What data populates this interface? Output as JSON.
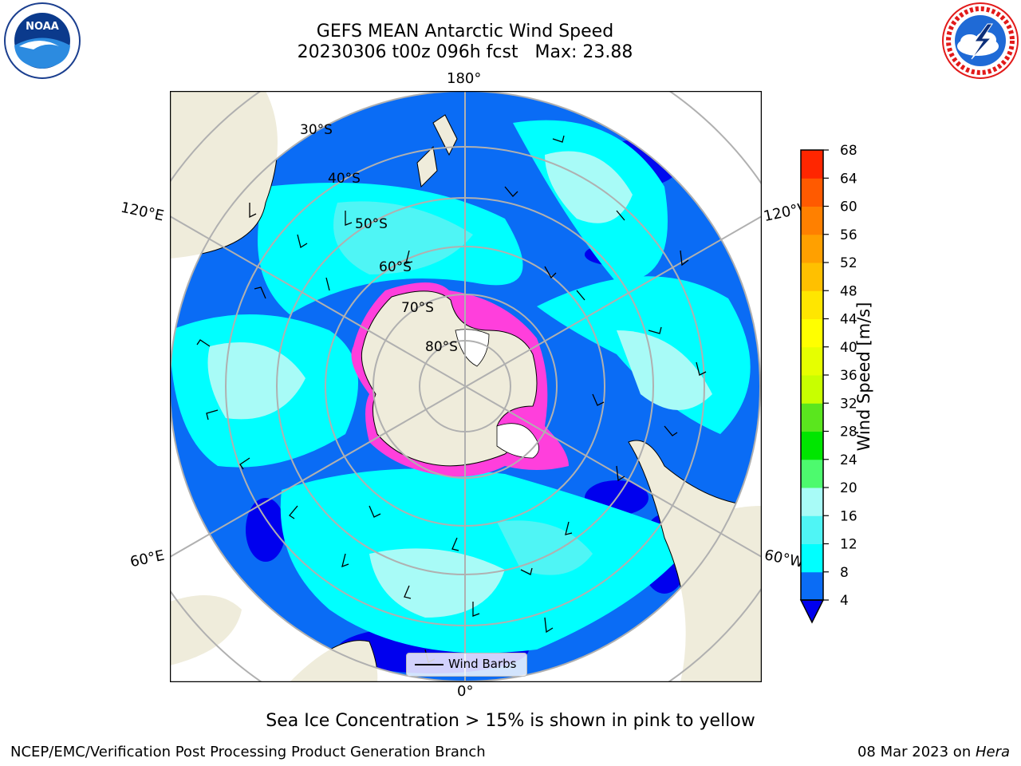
{
  "header": {
    "title_line1": "GEFS MEAN Antarctic Wind Speed",
    "title_line2": "20230306 t00z 096h fcst   Max: 23.88"
  },
  "logos": {
    "noaa": {
      "text": "NOAA",
      "ring_text": "NATIONAL OCEANIC AND ATMOSPHERIC ADMINISTRATION · U.S. DEPARTMENT OF COMMERCE",
      "icon": "noaa-seagull-logo"
    },
    "nws": {
      "ring_text": "NATIONAL WEATHER SERVICE",
      "icon": "nws-lightning-cloud-logo"
    }
  },
  "map": {
    "projection": "south-polar-stereographic",
    "lon_labels": {
      "top": "180°",
      "bottom": "0°",
      "left_upper": "120°E",
      "left_lower": "60°E",
      "right_upper": "120°W",
      "right_lower": "60°W"
    },
    "lat_labels": [
      "30°S",
      "40°S",
      "50°S",
      "60°S",
      "70°S",
      "80°S"
    ],
    "legend_label": "Wind Barbs",
    "colors": {
      "land": "#efecdb",
      "ice_sheet": "#ffffff",
      "sea_ice": "#ff3fdc",
      "grid": "#b0b0b0",
      "ws_4_8": "#0a6cf5",
      "ws_8_12": "#00ffff",
      "ws_12_16": "#4ff5f5",
      "ws_16_20": "#a8fbf7",
      "ws_below_4": "#0000ee"
    }
  },
  "colorbar": {
    "label": "Wind Speed [m/s]",
    "ticks": [
      "4",
      "8",
      "12",
      "16",
      "20",
      "24",
      "28",
      "32",
      "36",
      "40",
      "44",
      "48",
      "52",
      "56",
      "60",
      "64",
      "68"
    ],
    "colors": [
      "#0a6cf5",
      "#00ffff",
      "#4ff5f5",
      "#a8fbf7",
      "#4dfa6e",
      "#00e600",
      "#5ae61e",
      "#c8ff00",
      "#e6ff00",
      "#ffff00",
      "#ffe600",
      "#ffc000",
      "#ffa000",
      "#ff8000",
      "#ff5a00",
      "#ff2600"
    ],
    "extend_color": "#0000ee"
  },
  "note": "Sea Ice Concentration > 15% is shown in pink to yellow",
  "footer": {
    "left": "NCEP/EMC/Verification Post Processing Product Generation Branch",
    "right_date": "08 Mar 2023 on ",
    "right_host": "Hera"
  }
}
